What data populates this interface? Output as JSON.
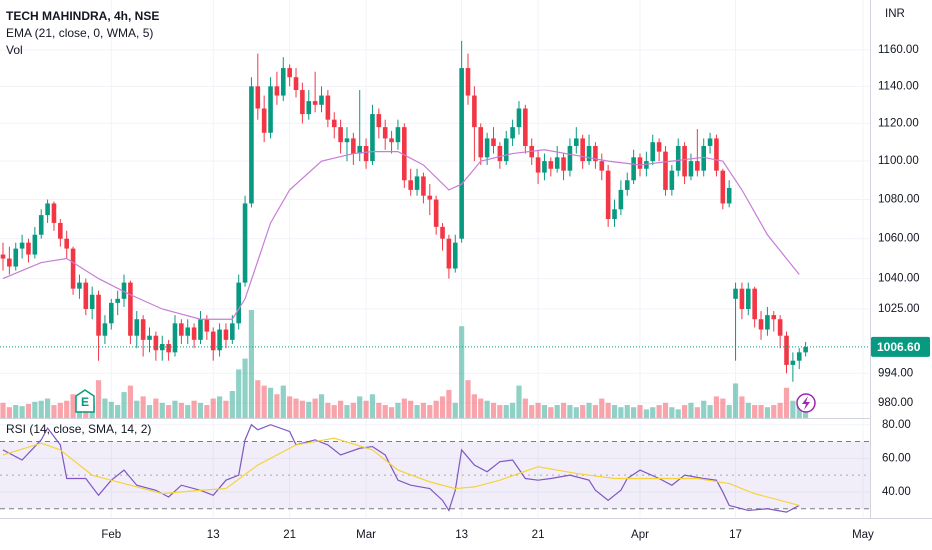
{
  "chart_data": [
    {
      "type": "candlestick",
      "title": "TECH MAHINDRA, 4h, NSE",
      "indicator_labels": [
        "EMA (21, close, 0, WMA, 5)",
        "Vol"
      ],
      "currency": "INR",
      "log": true,
      "grid": true,
      "up_color": "#089981",
      "down_color": "#f23645",
      "ylim": [
        973,
        1188
      ],
      "yticks": [
        {
          "value": 1160,
          "label": "1160.00"
        },
        {
          "value": 1140,
          "label": "1140.00"
        },
        {
          "value": 1120,
          "label": "1120.00"
        },
        {
          "value": 1100,
          "label": "1100.00"
        },
        {
          "value": 1080,
          "label": "1080.00"
        },
        {
          "value": 1060,
          "label": "1060.00"
        },
        {
          "value": 1040,
          "label": "1040.00"
        },
        {
          "value": 1025,
          "label": "1025.00"
        },
        {
          "value": 994,
          "label": "994.00"
        },
        {
          "value": 980,
          "label": "980.00"
        }
      ],
      "xticks": [
        {
          "value": 17,
          "label": "Feb"
        },
        {
          "value": 33,
          "label": "13"
        },
        {
          "value": 45,
          "label": "21"
        },
        {
          "value": 57,
          "label": "Mar"
        },
        {
          "value": 72,
          "label": "13"
        },
        {
          "value": 84,
          "label": "21"
        },
        {
          "value": 100,
          "label": "Apr"
        },
        {
          "value": 115,
          "label": "17"
        },
        {
          "value": 135,
          "label": "May"
        }
      ],
      "last_price": 1006.6,
      "last_price_label": "1006.60",
      "ohlc": [
        [
          1052,
          1058,
          1044,
          1050
        ],
        [
          1050,
          1056,
          1042,
          1046
        ],
        [
          1046,
          1058,
          1044,
          1055
        ],
        [
          1055,
          1062,
          1050,
          1058
        ],
        [
          1058,
          1060,
          1048,
          1052
        ],
        [
          1052,
          1066,
          1050,
          1062
        ],
        [
          1062,
          1075,
          1060,
          1072
        ],
        [
          1072,
          1080,
          1068,
          1078
        ],
        [
          1078,
          1079,
          1064,
          1068
        ],
        [
          1068,
          1070,
          1056,
          1060
        ],
        [
          1060,
          1064,
          1050,
          1055
        ],
        [
          1055,
          1056,
          1032,
          1035
        ],
        [
          1035,
          1042,
          1030,
          1038
        ],
        [
          1038,
          1040,
          1022,
          1025
        ],
        [
          1025,
          1036,
          1020,
          1032
        ],
        [
          1032,
          1034,
          1000,
          1012
        ],
        [
          1012,
          1022,
          1008,
          1018
        ],
        [
          1018,
          1030,
          1015,
          1028
        ],
        [
          1028,
          1034,
          1022,
          1030
        ],
        [
          1030,
          1042,
          1026,
          1038
        ],
        [
          1038,
          1039,
          1008,
          1012
        ],
        [
          1012,
          1024,
          1006,
          1020
        ],
        [
          1020,
          1022,
          1002,
          1010
        ],
        [
          1010,
          1016,
          1004,
          1012
        ],
        [
          1012,
          1014,
          1000,
          1005
        ],
        [
          1005,
          1012,
          1000,
          1008
        ],
        [
          1008,
          1010,
          1000,
          1004
        ],
        [
          1004,
          1022,
          1002,
          1018
        ],
        [
          1018,
          1020,
          1008,
          1012
        ],
        [
          1012,
          1020,
          1008,
          1016
        ],
        [
          1016,
          1018,
          1006,
          1010
        ],
        [
          1010,
          1024,
          1008,
          1020
        ],
        [
          1020,
          1022,
          1010,
          1014
        ],
        [
          1014,
          1016,
          1000,
          1005
        ],
        [
          1005,
          1018,
          1002,
          1015
        ],
        [
          1015,
          1018,
          1006,
          1010
        ],
        [
          1010,
          1022,
          1008,
          1018
        ],
        [
          1018,
          1042,
          1015,
          1038
        ],
        [
          1038,
          1082,
          1036,
          1078
        ],
        [
          1078,
          1145,
          1076,
          1140
        ],
        [
          1140,
          1158,
          1122,
          1128
        ],
        [
          1128,
          1135,
          1110,
          1115
        ],
        [
          1115,
          1145,
          1112,
          1140
        ],
        [
          1140,
          1148,
          1130,
          1135
        ],
        [
          1135,
          1156,
          1132,
          1150
        ],
        [
          1150,
          1152,
          1140,
          1145
        ],
        [
          1145,
          1150,
          1134,
          1138
        ],
        [
          1138,
          1142,
          1120,
          1125
        ],
        [
          1125,
          1138,
          1122,
          1132
        ],
        [
          1132,
          1148,
          1126,
          1130
        ],
        [
          1130,
          1140,
          1126,
          1135
        ],
        [
          1135,
          1138,
          1118,
          1122
        ],
        [
          1122,
          1126,
          1112,
          1118
        ],
        [
          1118,
          1122,
          1104,
          1110
        ],
        [
          1110,
          1118,
          1100,
          1112
        ],
        [
          1112,
          1115,
          1098,
          1104
        ],
        [
          1104,
          1138,
          1100,
          1108
        ],
        [
          1108,
          1112,
          1096,
          1100
        ],
        [
          1100,
          1130,
          1098,
          1125
        ],
        [
          1125,
          1128,
          1112,
          1118
        ],
        [
          1118,
          1122,
          1106,
          1112
        ],
        [
          1112,
          1116,
          1104,
          1110
        ],
        [
          1110,
          1122,
          1106,
          1118
        ],
        [
          1118,
          1120,
          1086,
          1090
        ],
        [
          1090,
          1096,
          1082,
          1085
        ],
        [
          1085,
          1096,
          1082,
          1092
        ],
        [
          1092,
          1094,
          1078,
          1082
        ],
        [
          1082,
          1088,
          1072,
          1080
        ],
        [
          1080,
          1082,
          1062,
          1066
        ],
        [
          1066,
          1068,
          1054,
          1060
        ],
        [
          1060,
          1062,
          1040,
          1045
        ],
        [
          1045,
          1062,
          1043,
          1058
        ],
        [
          1060,
          1165,
          1058,
          1150
        ],
        [
          1150,
          1158,
          1130,
          1135
        ],
        [
          1135,
          1140,
          1100,
          1118
        ],
        [
          1118,
          1120,
          1098,
          1102
        ],
        [
          1102,
          1115,
          1098,
          1112
        ],
        [
          1112,
          1118,
          1104,
          1108
        ],
        [
          1108,
          1110,
          1096,
          1100
        ],
        [
          1100,
          1116,
          1098,
          1112
        ],
        [
          1112,
          1122,
          1108,
          1118
        ],
        [
          1118,
          1132,
          1114,
          1128
        ],
        [
          1128,
          1130,
          1104,
          1108
        ],
        [
          1108,
          1112,
          1098,
          1102
        ],
        [
          1102,
          1106,
          1088,
          1094
        ],
        [
          1094,
          1104,
          1090,
          1100
        ],
        [
          1100,
          1102,
          1092,
          1096
        ],
        [
          1096,
          1108,
          1094,
          1102
        ],
        [
          1102,
          1104,
          1090,
          1095
        ],
        [
          1095,
          1112,
          1092,
          1108
        ],
        [
          1108,
          1118,
          1104,
          1112
        ],
        [
          1112,
          1114,
          1096,
          1100
        ],
        [
          1100,
          1114,
          1098,
          1108
        ],
        [
          1108,
          1110,
          1096,
          1100
        ],
        [
          1100,
          1104,
          1090,
          1095
        ],
        [
          1095,
          1098,
          1066,
          1070
        ],
        [
          1070,
          1080,
          1066,
          1075
        ],
        [
          1075,
          1090,
          1072,
          1085
        ],
        [
          1085,
          1094,
          1082,
          1090
        ],
        [
          1090,
          1106,
          1088,
          1102
        ],
        [
          1102,
          1104,
          1092,
          1096
        ],
        [
          1096,
          1105,
          1092,
          1100
        ],
        [
          1100,
          1114,
          1098,
          1110
        ],
        [
          1110,
          1112,
          1100,
          1105
        ],
        [
          1105,
          1108,
          1082,
          1085
        ],
        [
          1085,
          1098,
          1082,
          1095
        ],
        [
          1095,
          1112,
          1092,
          1108
        ],
        [
          1108,
          1110,
          1088,
          1092
        ],
        [
          1092,
          1104,
          1090,
          1100
        ],
        [
          1100,
          1117,
          1092,
          1095
        ],
        [
          1095,
          1112,
          1092,
          1108
        ],
        [
          1108,
          1115,
          1104,
          1112
        ],
        [
          1112,
          1114,
          1092,
          1095
        ],
        [
          1095,
          1096,
          1075,
          1078
        ],
        [
          1078,
          1090,
          1076,
          1086
        ],
        [
          1030,
          1038,
          1000,
          1035
        ],
        [
          1035,
          1038,
          1020,
          1025
        ],
        [
          1025,
          1038,
          1022,
          1035
        ],
        [
          1035,
          1036,
          1016,
          1020
        ],
        [
          1020,
          1024,
          1010,
          1015
        ],
        [
          1015,
          1026,
          1012,
          1022
        ],
        [
          1022,
          1024,
          1014,
          1020
        ],
        [
          1020,
          1022,
          1006,
          1012
        ],
        [
          1012,
          1014,
          994,
          998
        ],
        [
          998,
          1004,
          990,
          1000
        ],
        [
          1000,
          1006,
          996,
          1004
        ],
        [
          1004,
          1009,
          1002,
          1006.6
        ]
      ],
      "volume": [
        14,
        10,
        12,
        11,
        13,
        15,
        16,
        18,
        12,
        14,
        16,
        22,
        12,
        20,
        14,
        35,
        18,
        15,
        12,
        24,
        30,
        16,
        20,
        12,
        18,
        14,
        12,
        16,
        14,
        12,
        16,
        14,
        12,
        18,
        20,
        16,
        25,
        45,
        55,
        100,
        35,
        30,
        28,
        22,
        30,
        20,
        18,
        16,
        15,
        18,
        22,
        14,
        12,
        16,
        12,
        14,
        20,
        16,
        22,
        14,
        12,
        10,
        14,
        18,
        16,
        12,
        14,
        12,
        16,
        20,
        26,
        14,
        85,
        35,
        22,
        18,
        16,
        14,
        12,
        12,
        14,
        30,
        18,
        12,
        14,
        12,
        10,
        12,
        14,
        12,
        10,
        12,
        14,
        12,
        18,
        14,
        12,
        10,
        12,
        10,
        12,
        8,
        10,
        12,
        14,
        10,
        8,
        12,
        14,
        10,
        16,
        12,
        20,
        18,
        12,
        32,
        20,
        14,
        12,
        12,
        10,
        12,
        14,
        28,
        16,
        18,
        8
      ],
      "ema": {
        "color": "#c77dd6",
        "x": [
          0,
          6,
          10,
          15,
          20,
          25,
          31,
          36,
          38,
          42,
          45,
          50,
          55,
          58,
          62,
          66,
          70,
          72,
          75,
          80,
          85,
          90,
          95,
          100,
          105,
          110,
          113,
          116,
          120,
          125
        ],
        "values": [
          1040,
          1048,
          1050,
          1040,
          1032,
          1025,
          1020,
          1020,
          1030,
          1068,
          1085,
          1100,
          1104,
          1105,
          1105,
          1098,
          1085,
          1088,
          1100,
          1104,
          1106,
          1103,
          1100,
          1098,
          1100,
          1102,
          1100,
          1085,
          1062,
          1042
        ]
      }
    },
    {
      "type": "line",
      "title": "RSI (14, close, SMA, 14, 2)",
      "ylim": [
        24.5,
        84
      ],
      "yticks": [
        {
          "value": 80,
          "label": "80.00"
        },
        {
          "value": 60,
          "label": "60.00"
        },
        {
          "value": 40,
          "label": "40.00"
        }
      ],
      "bands": [
        30,
        70
      ],
      "mid": 50,
      "band_color": "#7e57c2",
      "series": [
        {
          "color": "#7e57c2",
          "x": [
            0,
            3,
            6,
            7,
            9,
            10,
            13,
            15,
            17,
            19,
            21,
            24,
            26,
            28,
            31,
            33,
            35,
            37,
            38,
            39,
            40,
            42,
            45,
            46,
            49,
            51,
            53,
            56,
            58,
            60,
            62,
            64,
            67,
            69,
            70,
            71,
            72,
            74,
            76,
            78,
            80,
            82,
            84,
            86,
            89,
            92,
            93,
            95,
            97,
            98,
            100,
            103,
            105,
            107,
            110,
            112,
            113,
            114,
            117,
            120,
            123,
            125
          ],
          "values": [
            65,
            59,
            71,
            78,
            68,
            48,
            48,
            38,
            47,
            53,
            44,
            41,
            37,
            44,
            41,
            38,
            47,
            50,
            71,
            80,
            77,
            80,
            76,
            68,
            71,
            68,
            62,
            66,
            67,
            62,
            47,
            44,
            42,
            35,
            29,
            41,
            65,
            56,
            52,
            58,
            59,
            48,
            47,
            48,
            50,
            47,
            41,
            35,
            41,
            48,
            53,
            48,
            44,
            50,
            48,
            47,
            40,
            32,
            29,
            30,
            28,
            32
          ]
        },
        {
          "color": "#f5d33b",
          "x": [
            0,
            6,
            9,
            14,
            20,
            25,
            31,
            35,
            40,
            46,
            52,
            58,
            62,
            67,
            71,
            74,
            78,
            84,
            90,
            96,
            103,
            109,
            114,
            118,
            125
          ],
          "values": [
            62,
            69,
            65,
            50,
            44,
            39,
            41,
            42,
            56,
            68,
            72,
            65,
            53,
            46,
            42,
            43,
            47,
            55,
            51,
            48,
            48,
            48,
            45,
            39,
            32
          ]
        }
      ]
    }
  ]
}
